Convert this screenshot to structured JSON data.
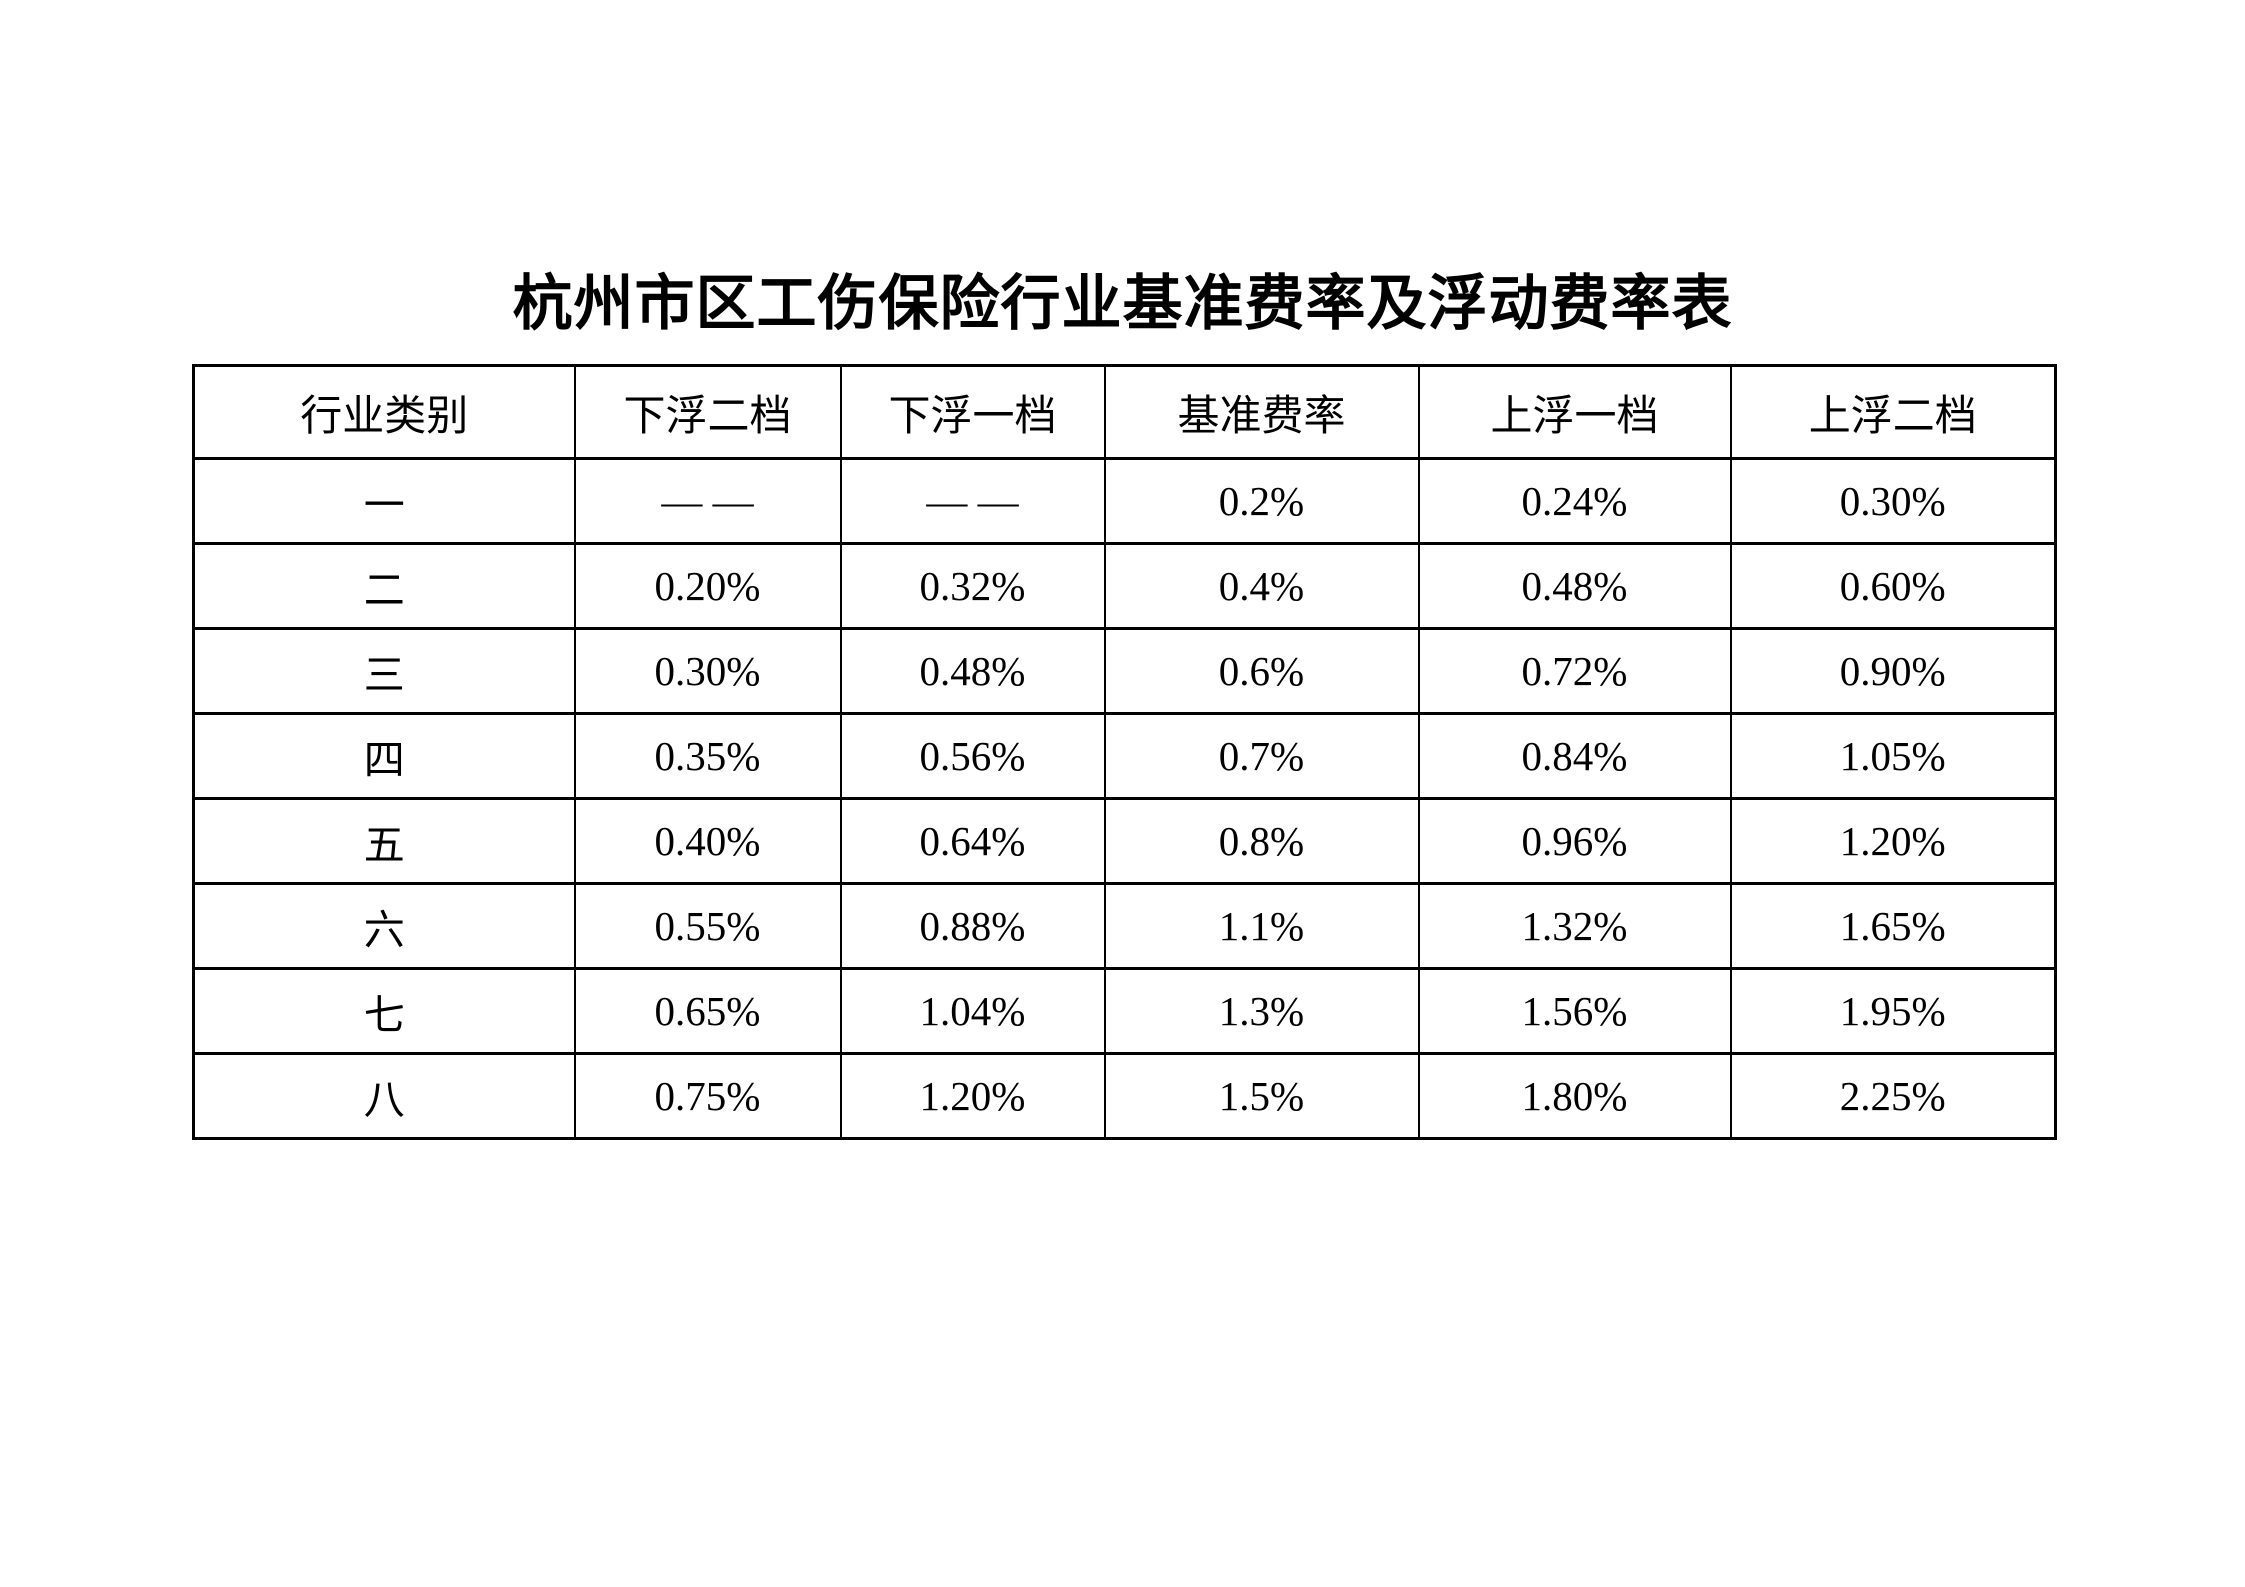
{
  "title": "杭州市区工伤保险行业基准费率及浮动费率表",
  "colors": {
    "text": "#000000",
    "border": "#000000",
    "background": "#ffffff"
  },
  "table": {
    "columns": [
      "行业类别",
      "下浮二档",
      "下浮一档",
      "基准费率",
      "上浮一档",
      "上浮二档"
    ],
    "rows": [
      [
        "一",
        "— —",
        "— —",
        "0.2%",
        "0.24%",
        "0.30%"
      ],
      [
        "二",
        "0.20%",
        "0.32%",
        "0.4%",
        "0.48%",
        "0.60%"
      ],
      [
        "三",
        "0.30%",
        "0.48%",
        "0.6%",
        "0.72%",
        "0.90%"
      ],
      [
        "四",
        "0.35%",
        "0.56%",
        "0.7%",
        "0.84%",
        "1.05%"
      ],
      [
        "五",
        "0.40%",
        "0.64%",
        "0.8%",
        "0.96%",
        "1.20%"
      ],
      [
        "六",
        "0.55%",
        "0.88%",
        "1.1%",
        "1.32%",
        "1.65%"
      ],
      [
        "七",
        "0.65%",
        "1.04%",
        "1.3%",
        "1.56%",
        "1.95%"
      ],
      [
        "八",
        "0.75%",
        "1.20%",
        "1.5%",
        "1.80%",
        "2.25%"
      ]
    ]
  }
}
